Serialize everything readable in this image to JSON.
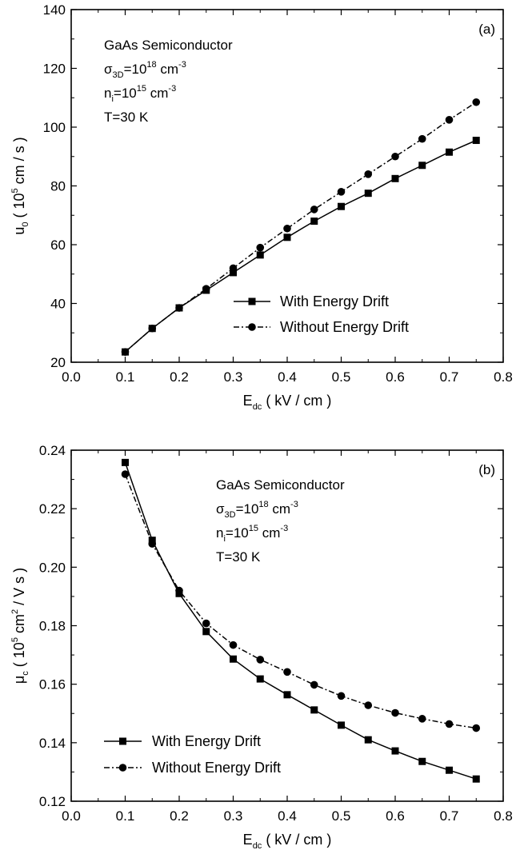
{
  "chart_data": [
    {
      "type": "line",
      "panel_label": "(a)",
      "xlabel_main": "E",
      "xlabel_sub": "dc",
      "xlabel_rest": " ( kV / cm )",
      "ylabel_main": "u",
      "ylabel_sub": "0",
      "ylabel_unit_pre": "( 10",
      "ylabel_unit_sup": "5",
      "ylabel_unit_post": " cm / s )",
      "xlim": [
        0.0,
        0.8
      ],
      "ylim": [
        20,
        140
      ],
      "xticks": [
        "0.0",
        "0.1",
        "0.2",
        "0.3",
        "0.4",
        "0.5",
        "0.6",
        "0.7",
        "0.8"
      ],
      "yticks": [
        "20",
        "40",
        "60",
        "80",
        "100",
        "120",
        "140"
      ],
      "annotation": {
        "line1": "GaAs Semiconductor",
        "line2_pre": "σ",
        "line2_sub": "3D",
        "line2_mid": "=10",
        "line2_sup": "18",
        "line2_post": " cm",
        "line2_sup2": "-3",
        "line3_pre": "n",
        "line3_sub": "i",
        "line3_mid": "=10",
        "line3_sup": "15",
        "line3_post": " cm",
        "line3_sup2": "-3",
        "line4": "T=30 K"
      },
      "legend_position": "lower-right",
      "x": [
        0.1,
        0.15,
        0.2,
        0.25,
        0.3,
        0.35,
        0.4,
        0.45,
        0.5,
        0.55,
        0.6,
        0.65,
        0.7,
        0.75
      ],
      "series": [
        {
          "name": "With Energy Drift",
          "marker": "square",
          "dash": "solid",
          "values": [
            23.5,
            31.5,
            38.5,
            44.5,
            50.5,
            56.5,
            62.5,
            68.0,
            73.0,
            77.5,
            82.5,
            87.0,
            91.5,
            95.5
          ]
        },
        {
          "name": "Without Energy Drift",
          "marker": "circle",
          "dash": "dashdot",
          "values": [
            23.5,
            31.5,
            38.5,
            45.0,
            52.0,
            59.0,
            65.5,
            72.0,
            78.0,
            84.0,
            90.0,
            96.0,
            102.5,
            108.5
          ]
        }
      ]
    },
    {
      "type": "line",
      "panel_label": "(b)",
      "xlabel_main": "E",
      "xlabel_sub": "dc",
      "xlabel_rest": " ( kV / cm )",
      "ylabel_main": "μ",
      "ylabel_sub": "c",
      "ylabel_unit_pre": "( 10",
      "ylabel_unit_sup": "5",
      "ylabel_unit_post": " cm",
      "ylabel_unit_sup2": "2",
      "ylabel_unit_post2": " / V s )",
      "xlim": [
        0.0,
        0.8
      ],
      "ylim": [
        0.12,
        0.24
      ],
      "xticks": [
        "0.0",
        "0.1",
        "0.2",
        "0.3",
        "0.4",
        "0.5",
        "0.6",
        "0.7",
        "0.8"
      ],
      "yticks": [
        "0.12",
        "0.14",
        "0.16",
        "0.18",
        "0.20",
        "0.22",
        "0.24"
      ],
      "annotation": {
        "line1": "GaAs Semiconductor",
        "line2_pre": "σ",
        "line2_sub": "3D",
        "line2_mid": "=10",
        "line2_sup": "18",
        "line2_post": " cm",
        "line2_sup2": "-3",
        "line3_pre": "n",
        "line3_sub": "i",
        "line3_mid": "=10",
        "line3_sup": "15",
        "line3_post": " cm",
        "line3_sup2": "-3",
        "line4": "T=30 K"
      },
      "legend_position": "lower-left",
      "x": [
        0.1,
        0.15,
        0.2,
        0.25,
        0.3,
        0.35,
        0.4,
        0.45,
        0.5,
        0.55,
        0.6,
        0.65,
        0.7,
        0.75
      ],
      "series": [
        {
          "name": "With Energy Drift",
          "marker": "square",
          "dash": "solid",
          "values": [
            0.2358,
            0.2092,
            0.191,
            0.178,
            0.1686,
            0.1618,
            0.1564,
            0.1512,
            0.146,
            0.141,
            0.1372,
            0.1336,
            0.1306,
            0.1276
          ]
        },
        {
          "name": "Without Energy Drift",
          "marker": "circle",
          "dash": "dashdot",
          "values": [
            0.2318,
            0.208,
            0.192,
            0.1808,
            0.1734,
            0.1684,
            0.1642,
            0.1598,
            0.156,
            0.1528,
            0.1502,
            0.1482,
            0.1464,
            0.145
          ]
        }
      ]
    }
  ]
}
